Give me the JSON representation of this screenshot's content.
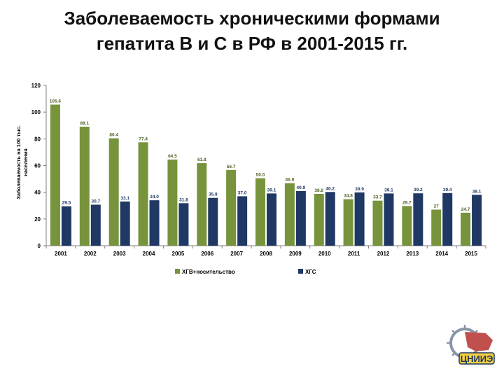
{
  "slide": {
    "title_line1": "Заболеваемость хроническими формами",
    "title_line2": "гепатита В и С в РФ в 2001-2015 гг."
  },
  "logo": {
    "text": "ЦНИИЭ"
  },
  "chart_data": {
    "type": "bar",
    "categories": [
      "2001",
      "2002",
      "2003",
      "2004",
      "2005",
      "2006",
      "2007",
      "2008",
      "2009",
      "2010",
      "2011",
      "2012",
      "2013",
      "2014",
      "2015"
    ],
    "series": [
      {
        "name": "ХГВ+носительство",
        "color": "#77933c",
        "values": [
          105.6,
          89.1,
          80.4,
          77.4,
          64.5,
          61.8,
          56.7,
          50.5,
          46.8,
          38.8,
          34.8,
          33.7,
          29.7,
          27,
          24.7
        ],
        "labels": [
          "105.6",
          "89.1",
          "80.4",
          "77.4",
          "64.5",
          "61.8",
          "56.7",
          "50.5",
          "46.8",
          "38.8",
          "34.8",
          "33.7",
          "29.7",
          "27",
          "24.7"
        ]
      },
      {
        "name": "ХГС",
        "color": "#1f3864",
        "values": [
          29.5,
          30.7,
          33.1,
          34.0,
          31.8,
          35.8,
          37.0,
          39.1,
          40.9,
          40.2,
          39.9,
          39.1,
          39.2,
          39.4,
          38.1
        ],
        "labels": [
          "29.5",
          "30.7",
          "33.1",
          "34.0",
          "31.8",
          "35.8",
          "37.0",
          "39.1",
          "40.9",
          "40.2",
          "39.9",
          "39.1",
          "39.2",
          "39.4",
          "38.1"
        ]
      }
    ],
    "ylabel_line1": "Заболеваемость на 100 тыс.",
    "ylabel_line2": "населения",
    "ylim": [
      0,
      120
    ],
    "yticks": [
      0,
      20,
      40,
      60,
      80,
      100,
      120
    ],
    "grid": false,
    "legend_position": "bottom"
  }
}
